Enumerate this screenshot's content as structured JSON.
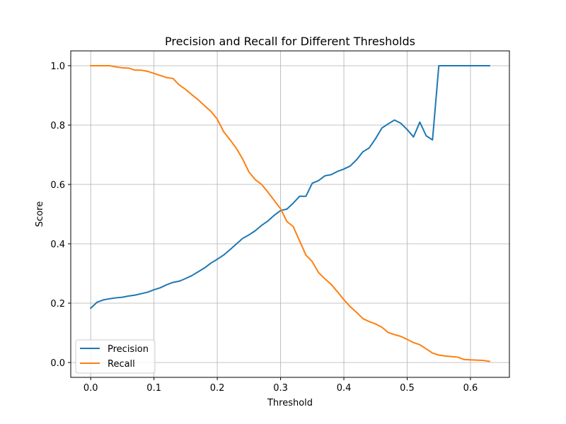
{
  "chart_data": {
    "type": "line",
    "title": "Precision and Recall for Different Thresholds",
    "xlabel": "Threshold",
    "ylabel": "Score",
    "xlim": [
      -0.0315,
      0.6615
    ],
    "ylim": [
      -0.05,
      1.05
    ],
    "xticks": [
      0.0,
      0.1,
      0.2,
      0.3,
      0.4,
      0.5,
      0.6
    ],
    "xtick_labels": [
      "0.0",
      "0.1",
      "0.2",
      "0.3",
      "0.4",
      "0.5",
      "0.6"
    ],
    "yticks": [
      0.0,
      0.2,
      0.4,
      0.6,
      0.8,
      1.0
    ],
    "ytick_labels": [
      "0.0",
      "0.2",
      "0.4",
      "0.6",
      "0.8",
      "1.0"
    ],
    "grid": true,
    "legend_position": "lower-left",
    "x": [
      0.0,
      0.01,
      0.02,
      0.03,
      0.04,
      0.05,
      0.06,
      0.07,
      0.08,
      0.09,
      0.1,
      0.11,
      0.12,
      0.13,
      0.14,
      0.15,
      0.16,
      0.17,
      0.18,
      0.19,
      0.2,
      0.21,
      0.22,
      0.23,
      0.24,
      0.25,
      0.26,
      0.27,
      0.28,
      0.29,
      0.3,
      0.31,
      0.32,
      0.33,
      0.34,
      0.35,
      0.36,
      0.37,
      0.38,
      0.39,
      0.4,
      0.41,
      0.42,
      0.43,
      0.44,
      0.45,
      0.46,
      0.47,
      0.48,
      0.49,
      0.5,
      0.51,
      0.52,
      0.53,
      0.54,
      0.55,
      0.56,
      0.57,
      0.58,
      0.59,
      0.6,
      0.61,
      0.62,
      0.63
    ],
    "series": [
      {
        "name": "Precision",
        "color": "#1f77b4",
        "values": [
          0.183,
          0.203,
          0.211,
          0.215,
          0.218,
          0.22,
          0.224,
          0.227,
          0.232,
          0.237,
          0.245,
          0.252,
          0.262,
          0.27,
          0.274,
          0.283,
          0.293,
          0.306,
          0.319,
          0.335,
          0.348,
          0.362,
          0.38,
          0.399,
          0.418,
          0.43,
          0.444,
          0.462,
          0.477,
          0.496,
          0.512,
          0.517,
          0.537,
          0.56,
          0.56,
          0.604,
          0.613,
          0.629,
          0.633,
          0.644,
          0.652,
          0.662,
          0.683,
          0.71,
          0.723,
          0.754,
          0.79,
          0.804,
          0.817,
          0.806,
          0.785,
          0.76,
          0.81,
          0.764,
          0.75,
          1.0,
          1.0,
          1.0,
          1.0,
          1.0,
          1.0,
          1.0,
          1.0,
          1.0
        ]
      },
      {
        "name": "Recall",
        "color": "#ff7f0e",
        "values": [
          1.0,
          1.0,
          1.0,
          1.0,
          0.996,
          0.993,
          0.992,
          0.985,
          0.985,
          0.981,
          0.974,
          0.967,
          0.96,
          0.957,
          0.935,
          0.92,
          0.902,
          0.885,
          0.865,
          0.846,
          0.82,
          0.778,
          0.751,
          0.722,
          0.686,
          0.642,
          0.616,
          0.6,
          0.574,
          0.546,
          0.518,
          0.475,
          0.458,
          0.41,
          0.362,
          0.34,
          0.303,
          0.282,
          0.263,
          0.238,
          0.212,
          0.188,
          0.169,
          0.148,
          0.138,
          0.13,
          0.119,
          0.101,
          0.094,
          0.088,
          0.078,
          0.067,
          0.06,
          0.046,
          0.032,
          0.025,
          0.022,
          0.02,
          0.018,
          0.01,
          0.009,
          0.008,
          0.007,
          0.004
        ]
      }
    ]
  }
}
